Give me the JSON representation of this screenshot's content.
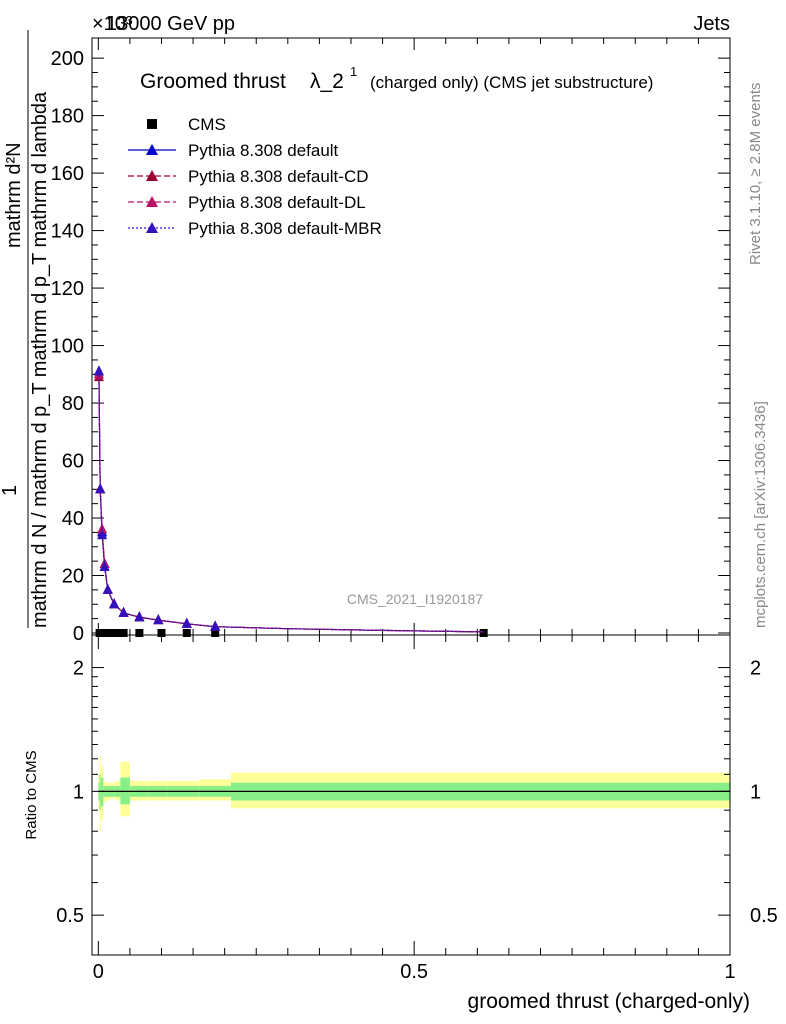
{
  "header": {
    "energy_label": "13000 GeV pp",
    "process_label": "Jets",
    "exponent_label": "×10³"
  },
  "side_labels": {
    "rivet": "Rivet 3.1.10, ≥ 2.8M events",
    "mcplots": "mcplots.cern.ch [arXiv:1306.3436]"
  },
  "watermark": "CMS_2021_I1920187",
  "colors": {
    "cms": "#000000",
    "default": "#0000cc",
    "default_cd": "#990033",
    "default_dl": "#bb1166",
    "default_mbr": "#3311bb",
    "band_outer": "#ffff99",
    "band_inner": "#88ee88"
  },
  "chart_data": [
    {
      "type": "line",
      "title_main": "Groomed thrust",
      "title_symbol": "λ_2",
      "title_sup": "1",
      "title_note": "(charged only) (CMS jet substructure)",
      "ylabel_numerator": "mathrm d²N",
      "ylabel_numerator_line1": "1",
      "ylabel_main": "mathrm d N / mathrm d p_T mathrm d p_T mathrm d lambda",
      "ylabel_top": "mathrm d²N",
      "y_ticks": [
        "0",
        "20",
        "40",
        "60",
        "80",
        "100",
        "120",
        "140",
        "160",
        "180",
        "200"
      ],
      "ylim": [
        0,
        207
      ],
      "xlim": [
        -0.01,
        1.0
      ],
      "legend_position": "top-left",
      "series": [
        {
          "name": "CMS",
          "marker": "square",
          "x": [
            0.002,
            0.006,
            0.01,
            0.015,
            0.022,
            0.03,
            0.04,
            0.065,
            0.1,
            0.14,
            0.185,
            0.61
          ],
          "y": [
            0,
            0,
            0,
            0,
            0,
            0,
            0,
            0,
            0,
            0,
            0,
            0
          ]
        },
        {
          "name": "Pythia 8.308 default",
          "marker": "triangle",
          "x": [
            0.001,
            0.003,
            0.006,
            0.01,
            0.015,
            0.025,
            0.04,
            0.065,
            0.095,
            0.14,
            0.185,
            0.3,
            0.45,
            0.61
          ],
          "y": [
            91,
            50,
            35,
            23,
            15,
            10,
            7,
            5.5,
            4.5,
            3.2,
            2.2,
            1.5,
            0.9,
            0.4
          ]
        },
        {
          "name": "Pythia 8.308 default-CD",
          "marker": "triangle",
          "x": [
            0.001,
            0.003,
            0.006,
            0.01,
            0.015,
            0.025,
            0.04,
            0.065,
            0.095,
            0.14,
            0.185,
            0.3,
            0.45,
            0.61
          ],
          "y": [
            89,
            50,
            36,
            24,
            15,
            10,
            7,
            5.5,
            4.5,
            3.2,
            2.2,
            1.5,
            0.9,
            0.4
          ]
        },
        {
          "name": "Pythia 8.308 default-DL",
          "marker": "triangle",
          "x": [
            0.001,
            0.003,
            0.006,
            0.01,
            0.015,
            0.025,
            0.04,
            0.065,
            0.095,
            0.14,
            0.185,
            0.3,
            0.45,
            0.61
          ],
          "y": [
            90,
            50,
            36,
            24,
            15,
            10,
            7,
            5.5,
            4.5,
            3.2,
            2.2,
            1.5,
            0.9,
            0.4
          ]
        },
        {
          "name": "Pythia 8.308 default-MBR",
          "marker": "triangle",
          "x": [
            0.001,
            0.003,
            0.006,
            0.01,
            0.015,
            0.025,
            0.04,
            0.065,
            0.095,
            0.14,
            0.185,
            0.3,
            0.45,
            0.61
          ],
          "y": [
            91,
            50,
            34,
            23,
            15,
            10,
            7,
            5.5,
            4.5,
            3.2,
            2.2,
            1.5,
            0.9,
            0.4
          ]
        }
      ]
    },
    {
      "type": "area",
      "ylabel": "Ratio to CMS",
      "xlabel": "groomed thrust (charged-only)",
      "x_ticks": [
        "0",
        "0.5",
        "1"
      ],
      "y_ticks_left": [
        "0.5",
        "1",
        "2"
      ],
      "y_ticks_right": [
        "0.5",
        "1",
        "2"
      ],
      "ylim": [
        0.4,
        2.4
      ],
      "log_scale": true,
      "xlim": [
        -0.01,
        1.0
      ],
      "bands": {
        "x_edges": [
          0.0,
          0.002,
          0.004,
          0.008,
          0.012,
          0.018,
          0.026,
          0.035,
          0.05,
          0.08,
          0.11,
          0.16,
          0.21,
          1.0
        ],
        "outer_lo": [
          0.9,
          0.8,
          0.85,
          0.94,
          0.95,
          0.96,
          0.95,
          0.87,
          0.95,
          0.95,
          0.95,
          0.95,
          0.91
        ],
        "outer_hi": [
          1.1,
          1.22,
          1.15,
          1.06,
          1.05,
          1.05,
          1.06,
          1.18,
          1.06,
          1.06,
          1.06,
          1.07,
          1.11
        ],
        "inner_lo": [
          0.95,
          0.9,
          0.92,
          0.97,
          0.97,
          0.97,
          0.97,
          0.93,
          0.97,
          0.97,
          0.97,
          0.97,
          0.95
        ],
        "inner_hi": [
          1.05,
          1.1,
          1.08,
          1.03,
          1.03,
          1.03,
          1.03,
          1.08,
          1.03,
          1.03,
          1.03,
          1.03,
          1.05
        ]
      },
      "reference_line": 1
    }
  ]
}
